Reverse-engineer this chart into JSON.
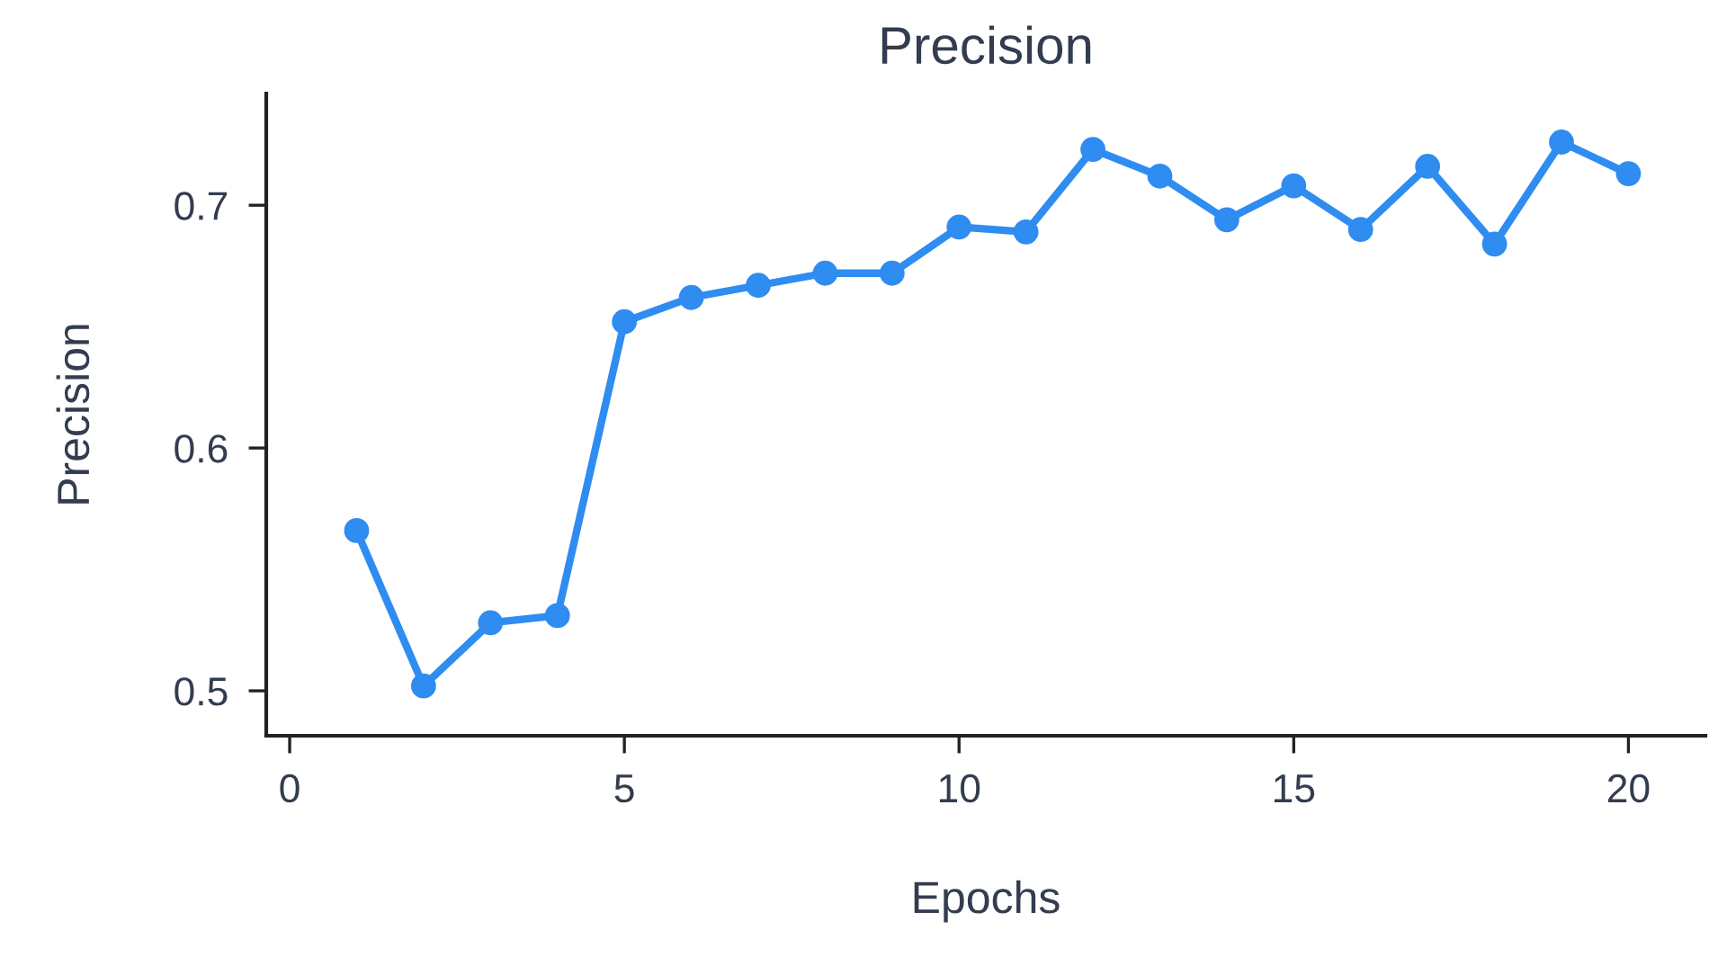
{
  "chart_data": {
    "type": "line",
    "title": "Precision",
    "xlabel": "Epochs",
    "ylabel": "Precision",
    "x": [
      1,
      2,
      3,
      4,
      5,
      6,
      7,
      8,
      9,
      10,
      11,
      12,
      13,
      14,
      15,
      16,
      17,
      18,
      19,
      20
    ],
    "series": [
      {
        "color": "#2f8cf0",
        "values": [
          0.566,
          0.502,
          0.528,
          0.531,
          0.652,
          0.662,
          0.667,
          0.672,
          0.672,
          0.691,
          0.689,
          0.723,
          0.712,
          0.694,
          0.708,
          0.69,
          0.716,
          0.684,
          0.726,
          0.713
        ]
      }
    ],
    "xlim": [
      -0.35,
      21.15
    ],
    "ylim": [
      0.4815,
      0.746
    ],
    "xticks": [
      0,
      5,
      10,
      15,
      20
    ],
    "yticks": [
      0.5,
      0.6,
      0.7
    ],
    "grid": false,
    "legend": false,
    "marker": "circle",
    "line_style": "solid"
  }
}
